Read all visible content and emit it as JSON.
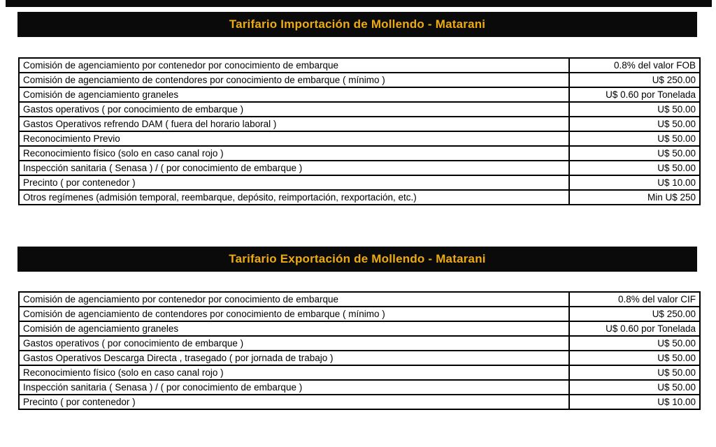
{
  "colors": {
    "banner_background": "#0a0a0a",
    "banner_text": "#edab10",
    "table_border": "#000000"
  },
  "tables": [
    {
      "title": "Tarifario Importación de Mollendo - Matarani",
      "rows": [
        {
          "concept": "Comisión de agenciamiento por contenedor por conocimiento de embarque",
          "value": "0.8% del valor FOB"
        },
        {
          "concept": "Comisión de agenciamiento de contendores por conocimiento de embarque ( mínimo )",
          "value": "U$ 250.00"
        },
        {
          "concept": "Comisión de agenciamiento graneles",
          "value": "U$ 0.60 por Tonelada"
        },
        {
          "concept": "Gastos operativos ( por conocimiento de embarque )",
          "value": "U$ 50.00"
        },
        {
          "concept": "Gastos Operativos refrendo DAM ( fuera del horario laboral )",
          "value": "U$ 50.00"
        },
        {
          "concept": "Reconocimiento Previo",
          "value": "U$ 50.00"
        },
        {
          "concept": "Reconocimiento físico (solo en caso canal rojo )",
          "value": "U$ 50.00"
        },
        {
          "concept": "Inspección sanitaria ( Senasa ) / ( por conocimiento de embarque )",
          "value": "U$ 50.00"
        },
        {
          "concept": "Precinto ( por contenedor )",
          "value": "U$ 10.00"
        },
        {
          "concept": "Otros regímenes (admisión temporal, reembarque, depósito, reimportación, rexportación, etc.)",
          "value": "Min U$ 250"
        }
      ]
    },
    {
      "title": "Tarifario Exportación de Mollendo - Matarani",
      "rows": [
        {
          "concept": "Comisión de agenciamiento por contenedor por conocimiento de embarque",
          "value": "0.8% del valor CIF"
        },
        {
          "concept": "Comisión de agenciamiento de contendores por conocimiento de embarque ( mínimo )",
          "value": "U$ 250.00"
        },
        {
          "concept": "Comisión de agenciamiento graneles",
          "value": "U$ 0.60 por Tonelada"
        },
        {
          "concept": "Gastos operativos ( por conocimiento de embarque )",
          "value": "U$ 50.00"
        },
        {
          "concept": "Gastos Operativos Descarga Directa , trasegado ( por jornada de trabajo )",
          "value": "U$ 50.00"
        },
        {
          "concept": "Reconocimiento físico (solo en caso canal rojo )",
          "value": "U$ 50.00"
        },
        {
          "concept": "Inspección sanitaria ( Senasa ) / ( por conocimiento de embarque )",
          "value": "U$ 50.00"
        },
        {
          "concept": "Precinto ( por contenedor )",
          "value": "U$ 10.00"
        }
      ]
    }
  ]
}
